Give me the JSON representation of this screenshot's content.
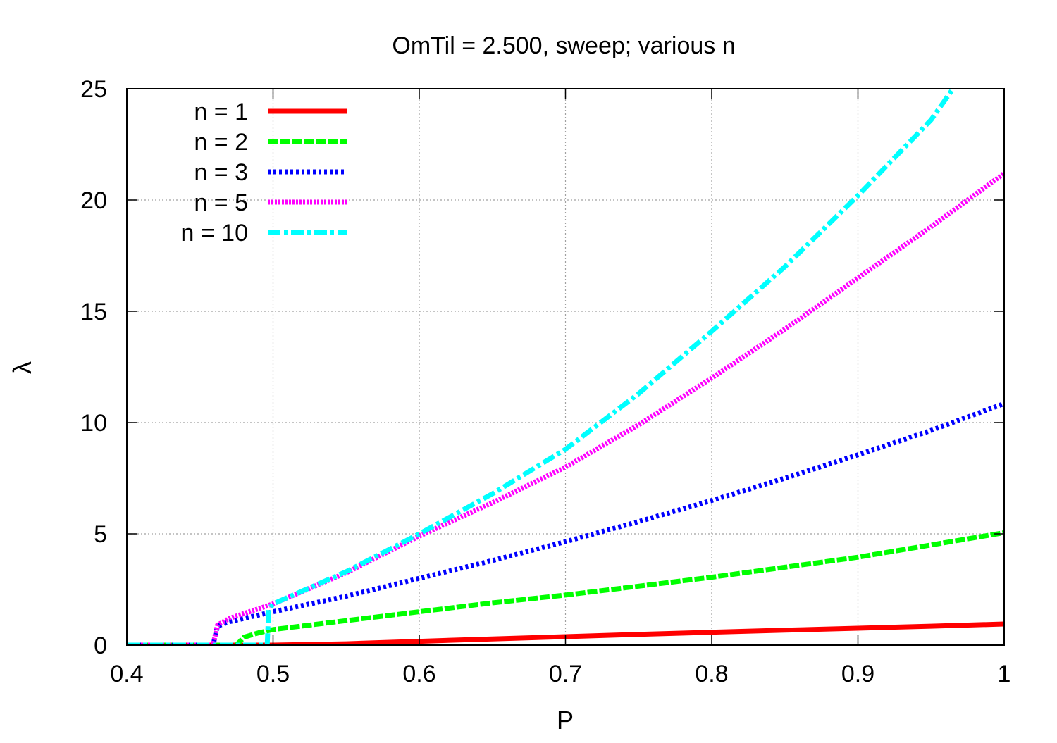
{
  "chart_data": {
    "type": "line",
    "title": "OmTil = 2.500, sweep; various n",
    "xlabel": "P",
    "ylabel": "λ",
    "xlim": [
      0.4,
      1.0
    ],
    "ylim": [
      0,
      25
    ],
    "xticks": [
      "0.4",
      "0.5",
      "0.6",
      "0.7",
      "0.8",
      "0.9",
      "1"
    ],
    "yticks": [
      "0",
      "5",
      "10",
      "15",
      "20",
      "25"
    ],
    "grid": true,
    "legend_position": "top-left",
    "series": [
      {
        "name": "n = 1",
        "color": "#ff0000",
        "style": "solid",
        "x": [
          0.4,
          0.45,
          0.5,
          0.55,
          0.6,
          0.65,
          0.7,
          0.75,
          0.8,
          0.85,
          0.9,
          0.95,
          1.0
        ],
        "y": [
          0,
          0,
          0,
          0.06,
          0.17,
          0.28,
          0.38,
          0.48,
          0.58,
          0.67,
          0.76,
          0.85,
          0.95
        ]
      },
      {
        "name": "n = 2",
        "color": "#00ff00",
        "style": "dashed",
        "x": [
          0.4,
          0.45,
          0.475,
          0.48,
          0.49,
          0.5,
          0.55,
          0.6,
          0.65,
          0.7,
          0.75,
          0.8,
          0.85,
          0.9,
          0.95,
          1.0
        ],
        "y": [
          0,
          0,
          0,
          0.35,
          0.55,
          0.7,
          1.1,
          1.5,
          1.9,
          2.25,
          2.65,
          3.05,
          3.5,
          3.95,
          4.5,
          5.05
        ]
      },
      {
        "name": "n = 3",
        "color": "#0000ff",
        "style": "dotted",
        "x": [
          0.4,
          0.45,
          0.459,
          0.462,
          0.47,
          0.5,
          0.55,
          0.6,
          0.65,
          0.7,
          0.75,
          0.8,
          0.85,
          0.9,
          0.95,
          1.0
        ],
        "y": [
          0,
          0,
          0,
          0.85,
          1.05,
          1.5,
          2.2,
          3.0,
          3.8,
          4.65,
          5.55,
          6.5,
          7.5,
          8.55,
          9.65,
          10.85
        ]
      },
      {
        "name": "n = 5",
        "color": "#ff00ff",
        "style": "dotted",
        "x": [
          0.4,
          0.45,
          0.459,
          0.462,
          0.47,
          0.5,
          0.55,
          0.6,
          0.65,
          0.7,
          0.75,
          0.8,
          0.85,
          0.9,
          0.95,
          1.0
        ],
        "y": [
          0,
          0,
          0,
          0.9,
          1.2,
          1.85,
          3.25,
          4.9,
          6.4,
          8.0,
          9.9,
          12.0,
          14.2,
          16.5,
          18.8,
          21.2
        ]
      },
      {
        "name": "n = 10",
        "color": "#00ffff",
        "style": "dashdot",
        "x": [
          0.4,
          0.45,
          0.496,
          0.497,
          0.5,
          0.55,
          0.6,
          0.65,
          0.7,
          0.75,
          0.8,
          0.85,
          0.9,
          0.95,
          0.965
        ],
        "y": [
          0,
          0,
          0,
          1.6,
          1.85,
          3.3,
          5.0,
          6.8,
          8.8,
          11.3,
          14.1,
          17.0,
          20.2,
          23.6,
          25.0
        ]
      }
    ]
  }
}
